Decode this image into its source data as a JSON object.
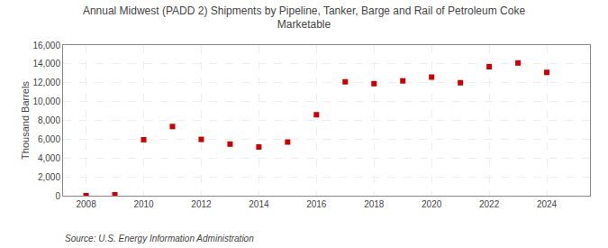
{
  "chart_data": {
    "type": "scatter",
    "title": "Annual Midwest (PADD 2) Shipments by Pipeline, Tanker, Barge and Rail of Petroleum Coke\nMarketable",
    "ylabel": "Thousand Barrels",
    "annotations": [
      "Source: U.S. Energy Information Administration"
    ],
    "x": [
      2008,
      2009,
      2010,
      2011,
      2012,
      2013,
      2014,
      2015,
      2016,
      2017,
      2018,
      2019,
      2020,
      2021,
      2022,
      2023,
      2024
    ],
    "values": [
      10,
      100,
      5950,
      7350,
      5980,
      5480,
      5180,
      5700,
      8600,
      12100,
      11900,
      12200,
      12600,
      12000,
      13700,
      14100,
      13100
    ],
    "color": "#cc0000",
    "marker": "square",
    "xlim": [
      2007.2,
      2025.5
    ],
    "xticks": [
      2008,
      2010,
      2012,
      2014,
      2016,
      2018,
      2020,
      2022,
      2024
    ],
    "ylim": [
      0,
      16000
    ],
    "yticks": [
      0,
      {
        "value": 2000,
        "label": "2,000"
      },
      {
        "value": 4000,
        "label": "4,000"
      },
      {
        "value": 6000,
        "label": "6,000"
      },
      {
        "value": 8000,
        "label": "8,000"
      },
      {
        "value": 10000,
        "label": "10,000"
      },
      {
        "value": 12000,
        "label": "12,000"
      },
      {
        "value": 14000,
        "label": "14,000"
      },
      {
        "value": 16000,
        "label": "16,000"
      }
    ],
    "grid": true
  }
}
